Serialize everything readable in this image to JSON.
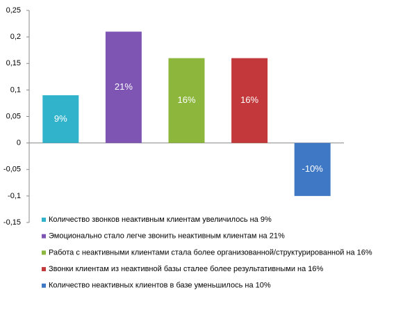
{
  "chart_data": {
    "type": "bar",
    "series": [
      {
        "name": "Количество звонков неактивным клиентам увеличилось на 9%",
        "color": "#31b3cc",
        "values": [
          0.09
        ],
        "value_labels": [
          "9%"
        ]
      },
      {
        "name": "Эмоционально стало легче звонить неактивным клиентам на 21%",
        "color": "#7e55b3",
        "values": [
          0.21
        ],
        "value_labels": [
          "21%"
        ]
      },
      {
        "name": "Работа с неактивными клиентами стала более организованной/структурированной на 16%",
        "color": "#8db63c",
        "values": [
          0.16
        ],
        "value_labels": [
          "16%"
        ]
      },
      {
        "name": "Звонки клиентам из неактивной базы сталее более результативными на 16%",
        "color": "#c3393b",
        "values": [
          0.16
        ],
        "value_labels": [
          "16%"
        ]
      },
      {
        "name": "Количество неактивных клиентов в базе уменьшилось на 10%",
        "color": "#3f78c4",
        "values": [
          -0.1
        ],
        "value_labels": [
          "-10%"
        ]
      }
    ],
    "ylim": [
      -0.15,
      0.25
    ],
    "yticks": [
      {
        "value": -0.15,
        "label": "-0,15"
      },
      {
        "value": -0.1,
        "label": "-0,1"
      },
      {
        "value": -0.05,
        "label": "-0,05"
      },
      0,
      {
        "value": 0.05,
        "label": "0,05"
      },
      {
        "value": 0.1,
        "label": "0,1"
      },
      {
        "value": 0.15,
        "label": "0,15"
      },
      {
        "value": 0.2,
        "label": "0,2"
      },
      {
        "value": 0.25,
        "label": "0,25"
      }
    ],
    "grid": false,
    "legend": "bottom"
  }
}
